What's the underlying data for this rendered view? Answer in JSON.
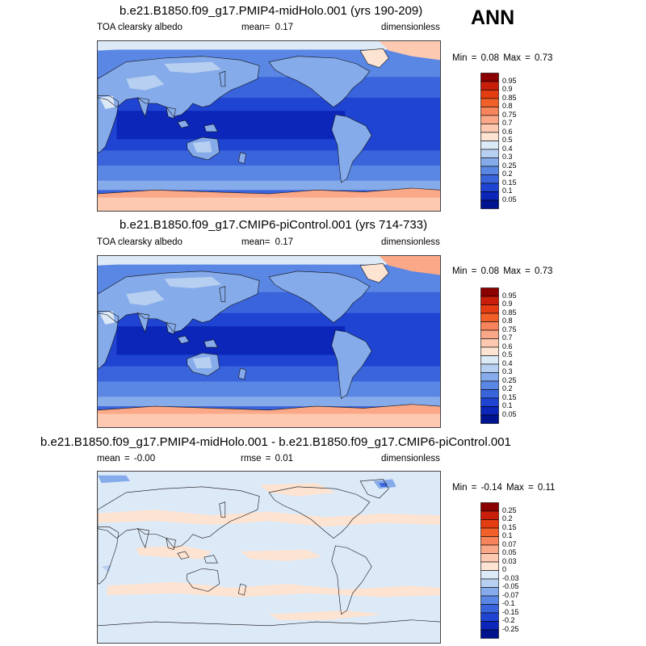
{
  "season": "ANN",
  "panels": [
    {
      "title": "b.e21.B1850.f09_g17.PMIP4-midHolo.001 (yrs 190-209)",
      "left_label": "TOA clearsky albedo",
      "center_label": "mean=  0.17",
      "right_label": "dimensionless",
      "minmax": "Min =  0.08 Max =  0.73",
      "variant": "midholo",
      "colorbar": {
        "labels": [
          "0.95",
          "0.9",
          "0.85",
          "0.8",
          "0.75",
          "0.7",
          "0.6",
          "0.5",
          "0.4",
          "0.3",
          "0.25",
          "0.2",
          "0.15",
          "0.1",
          "0.05"
        ],
        "colors": [
          "#8b0000",
          "#c81e0a",
          "#e53d12",
          "#f2602a",
          "#f7845a",
          "#fba888",
          "#fdc9b0",
          "#fde3d2",
          "#dce9f7",
          "#b7cff0",
          "#86abea",
          "#5a86e4",
          "#3a64dc",
          "#1f44d2",
          "#0b26b8",
          "#00138e"
        ]
      }
    },
    {
      "title": "b.e21.B1850.f09_g17.CMIP6-piControl.001 (yrs 714-733)",
      "left_label": "TOA clearsky albedo",
      "center_label": "mean=  0.17",
      "right_label": "dimensionless",
      "minmax": "Min =  0.08 Max =  0.73",
      "variant": "picontrol",
      "colorbar": {
        "labels": [
          "0.95",
          "0.9",
          "0.85",
          "0.8",
          "0.75",
          "0.7",
          "0.6",
          "0.5",
          "0.4",
          "0.3",
          "0.25",
          "0.2",
          "0.15",
          "0.1",
          "0.05"
        ],
        "colors": [
          "#8b0000",
          "#c81e0a",
          "#e53d12",
          "#f2602a",
          "#f7845a",
          "#fba888",
          "#fdc9b0",
          "#fde3d2",
          "#dce9f7",
          "#b7cff0",
          "#86abea",
          "#5a86e4",
          "#3a64dc",
          "#1f44d2",
          "#0b26b8",
          "#00138e"
        ]
      }
    },
    {
      "title": "b.e21.B1850.f09_g17.PMIP4-midHolo.001 - b.e21.B1850.f09_g17.CMIP6-piControl.001",
      "left_label": "mean =  -0.00",
      "center_label": "rmse =  0.01",
      "right_label": "dimensionless",
      "minmax": "Min =  -0.14 Max =  0.11",
      "variant": "diff",
      "colorbar": {
        "labels": [
          "0.25",
          "0.2",
          "0.15",
          "0.1",
          "0.07",
          "0.05",
          "0.03",
          "0",
          "-0.03",
          "-0.05",
          "-0.07",
          "-0.1",
          "-0.15",
          "-0.2",
          "-0.25"
        ],
        "colors": [
          "#8b0000",
          "#c81e0a",
          "#e53d12",
          "#f2602a",
          "#f7845a",
          "#fba888",
          "#fdc9b0",
          "#fde3d2",
          "#dce9f7",
          "#b7cff0",
          "#86abea",
          "#5a86e4",
          "#3a64dc",
          "#1f44d2",
          "#0b26b8",
          "#00138e"
        ]
      }
    }
  ],
  "chart_data": [
    {
      "type": "heatmap",
      "title": "b.e21.B1850.f09_g17.PMIP4-midHolo.001 (yrs 190-209)",
      "variable": "TOA clearsky albedo",
      "units": "dimensionless",
      "mean": 0.17,
      "min": 0.08,
      "max": 0.73,
      "contour_levels": [
        0.05,
        0.1,
        0.15,
        0.2,
        0.25,
        0.3,
        0.4,
        0.5,
        0.6,
        0.7,
        0.75,
        0.8,
        0.85,
        0.9,
        0.95
      ]
    },
    {
      "type": "heatmap",
      "title": "b.e21.B1850.f09_g17.CMIP6-piControl.001 (yrs 714-733)",
      "variable": "TOA clearsky albedo",
      "units": "dimensionless",
      "mean": 0.17,
      "min": 0.08,
      "max": 0.73,
      "contour_levels": [
        0.05,
        0.1,
        0.15,
        0.2,
        0.25,
        0.3,
        0.4,
        0.5,
        0.6,
        0.7,
        0.75,
        0.8,
        0.85,
        0.9,
        0.95
      ]
    },
    {
      "type": "heatmap",
      "title": "b.e21.B1850.f09_g17.PMIP4-midHolo.001 - b.e21.B1850.f09_g17.CMIP6-piControl.001",
      "units": "dimensionless",
      "mean": -0.0,
      "rmse": 0.01,
      "min": -0.14,
      "max": 0.11,
      "contour_levels": [
        -0.25,
        -0.2,
        -0.15,
        -0.1,
        -0.07,
        -0.05,
        -0.03,
        0,
        0.03,
        0.05,
        0.07,
        0.1,
        0.15,
        0.2,
        0.25
      ]
    }
  ]
}
